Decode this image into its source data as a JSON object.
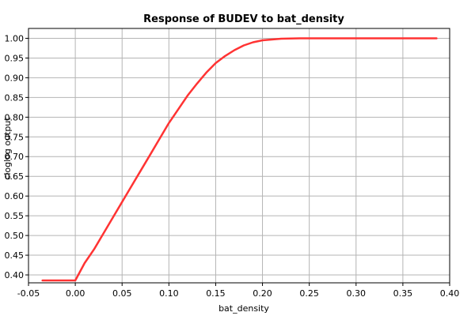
{
  "chart_data": {
    "type": "line",
    "title": "Response of BUDEV to bat_density",
    "xlabel": "bat_density",
    "ylabel": "cloglog output",
    "xlim": [
      -0.05,
      0.4
    ],
    "ylim": [
      0.38,
      1.025
    ],
    "x_ticks": [
      "-0.05",
      "0.00",
      "0.05",
      "0.10",
      "0.15",
      "0.20",
      "0.25",
      "0.30",
      "0.35",
      "0.40"
    ],
    "y_ticks": [
      "0.40",
      "0.45",
      "0.50",
      "0.55",
      "0.60",
      "0.65",
      "0.70",
      "0.75",
      "0.80",
      "0.85",
      "0.90",
      "0.95",
      "1.00"
    ],
    "grid": true,
    "series": [
      {
        "color": "#ff3333",
        "x": [
          -0.035,
          0.0,
          0.01,
          0.02,
          0.03,
          0.04,
          0.05,
          0.06,
          0.07,
          0.08,
          0.09,
          0.1,
          0.11,
          0.12,
          0.13,
          0.14,
          0.15,
          0.16,
          0.17,
          0.18,
          0.19,
          0.2,
          0.21,
          0.22,
          0.24,
          0.3,
          0.386
        ],
        "y": [
          0.386,
          0.386,
          0.43,
          0.465,
          0.505,
          0.545,
          0.585,
          0.625,
          0.665,
          0.705,
          0.745,
          0.785,
          0.82,
          0.855,
          0.885,
          0.913,
          0.937,
          0.955,
          0.97,
          0.982,
          0.99,
          0.995,
          0.997,
          0.999,
          1.0,
          1.0,
          1.0
        ]
      }
    ]
  }
}
